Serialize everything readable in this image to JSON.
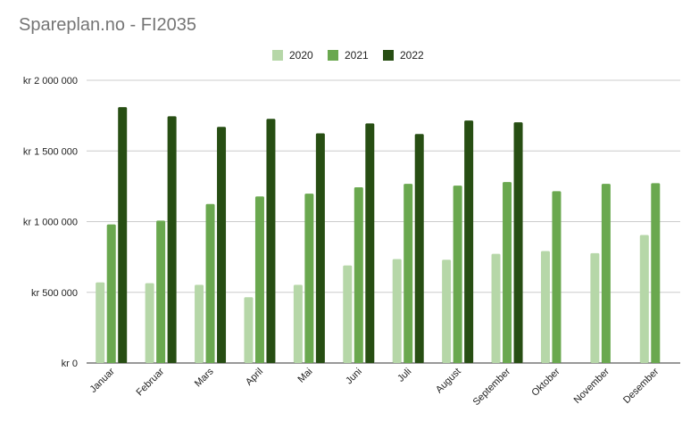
{
  "chart_data": {
    "type": "bar",
    "title": "Spareplan.no - FI2035",
    "xlabel": "",
    "ylabel": "",
    "categories": [
      "Januar",
      "Februar",
      "Mars",
      "April",
      "Mai",
      "Juni",
      "Juli",
      "August",
      "September",
      "Oktober",
      "November",
      "Desember"
    ],
    "series": [
      {
        "name": "2020",
        "color": "#b6d7a8",
        "values": [
          570000,
          565000,
          553000,
          465000,
          553000,
          690000,
          735000,
          730000,
          772000,
          792000,
          777000,
          905000
        ]
      },
      {
        "name": "2021",
        "color": "#6aa84f",
        "values": [
          980000,
          1007000,
          1125000,
          1178000,
          1198000,
          1243000,
          1267000,
          1255000,
          1280000,
          1215000,
          1267000,
          1272000
        ]
      },
      {
        "name": "2022",
        "color": "#274e13",
        "values": [
          1810000,
          1745000,
          1670000,
          1727000,
          1625000,
          1695000,
          1620000,
          1715000,
          1703000,
          null,
          null,
          null
        ]
      }
    ],
    "ylim": [
      0,
      2000000
    ],
    "yticks": [
      0,
      500000,
      1000000,
      1500000,
      2000000
    ],
    "ytick_labels": [
      "kr    0",
      "kr  500 000",
      "kr 1 000 000",
      "kr 1 500 000",
      "kr 2 000 000"
    ],
    "legend_position": "top-center",
    "grid": true
  }
}
